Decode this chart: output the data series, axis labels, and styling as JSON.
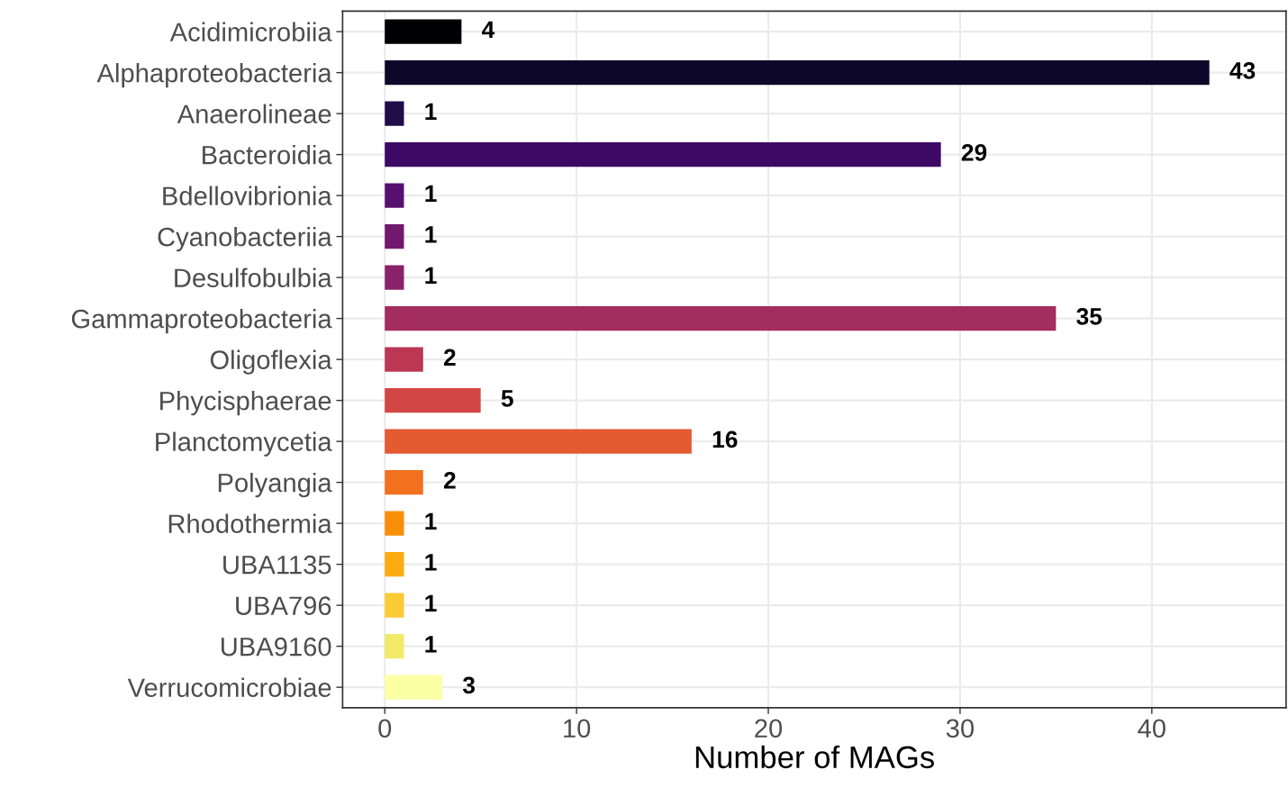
{
  "chart_data": {
    "type": "bar",
    "orientation": "horizontal",
    "xlabel": "Number of MAGs",
    "categories": [
      "Acidimicrobiia",
      "Alphaproteobacteria",
      "Anaerolineae",
      "Bacteroidia",
      "Bdellovibrionia",
      "Cyanobacteriia",
      "Desulfobulbia",
      "Gammaproteobacteria",
      "Oligoflexia",
      "Phycisphaerae",
      "Planctomycetia",
      "Polyangia",
      "Rhodothermia",
      "UBA1135",
      "UBA796",
      "UBA9160",
      "Verrucomicrobiae"
    ],
    "values": [
      4,
      43,
      1,
      29,
      1,
      1,
      1,
      35,
      2,
      5,
      16,
      2,
      1,
      1,
      1,
      1,
      3
    ],
    "colors": [
      "#000004",
      "#0d0829",
      "#210c4a",
      "#3d0965",
      "#57106e",
      "#71196e",
      "#8a226a",
      "#a32c61",
      "#bc3754",
      "#d24644",
      "#e45a31",
      "#f1711f",
      "#f98e09",
      "#fcac11",
      "#f9cb35",
      "#f2ea69",
      "#fcffa4"
    ],
    "xlim": [
      -2.2,
      47.0
    ],
    "xticks": [
      0,
      10,
      20,
      30,
      40
    ],
    "grid": true,
    "data_labels": true
  }
}
